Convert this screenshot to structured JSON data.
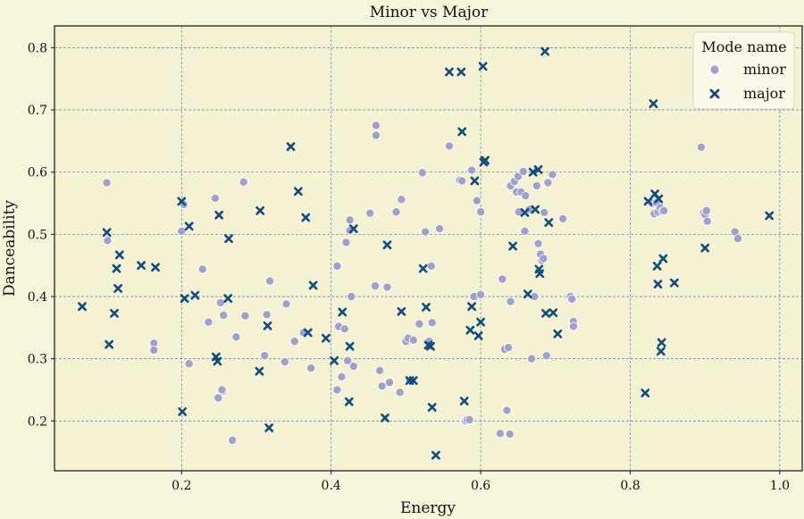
{
  "chart_data": {
    "type": "scatter",
    "title": "Minor vs Major",
    "xlabel": "Energy",
    "ylabel": "Danceability",
    "xlim": [
      0.03,
      1.03
    ],
    "ylim": [
      0.12,
      0.835
    ],
    "xticks": [
      0.2,
      0.4,
      0.6,
      0.8,
      1.0
    ],
    "xtick_labels": [
      "0.2",
      "0.4",
      "0.6",
      "0.8",
      "1.0"
    ],
    "yticks": [
      0.2,
      0.3,
      0.4,
      0.5,
      0.6,
      0.7,
      0.8
    ],
    "ytick_labels": [
      "0.2",
      "0.3",
      "0.4",
      "0.5",
      "0.6",
      "0.7",
      "0.8"
    ],
    "grid": true,
    "legend": {
      "title": "Mode name",
      "placement": "top-right"
    },
    "series": [
      {
        "name": "minor",
        "marker": "circle",
        "color": "#9fa0cb",
        "points": [
          [
            0.1,
            0.583
          ],
          [
            0.101,
            0.49
          ],
          [
            0.163,
            0.325
          ],
          [
            0.163,
            0.314
          ],
          [
            0.2,
            0.505
          ],
          [
            0.203,
            0.548
          ],
          [
            0.21,
            0.292
          ],
          [
            0.228,
            0.444
          ],
          [
            0.236,
            0.359
          ],
          [
            0.245,
            0.558
          ],
          [
            0.249,
            0.237
          ],
          [
            0.252,
            0.39
          ],
          [
            0.255,
            0.248
          ],
          [
            0.254,
            0.25
          ],
          [
            0.256,
            0.37
          ],
          [
            0.268,
            0.169
          ],
          [
            0.273,
            0.335
          ],
          [
            0.283,
            0.584
          ],
          [
            0.285,
            0.369
          ],
          [
            0.311,
            0.305
          ],
          [
            0.314,
            0.371
          ],
          [
            0.318,
            0.425
          ],
          [
            0.338,
            0.295
          ],
          [
            0.34,
            0.388
          ],
          [
            0.351,
            0.328
          ],
          [
            0.363,
            0.342
          ],
          [
            0.373,
            0.285
          ],
          [
            0.408,
            0.449
          ],
          [
            0.408,
            0.25
          ],
          [
            0.41,
            0.352
          ],
          [
            0.414,
            0.271
          ],
          [
            0.418,
            0.348
          ],
          [
            0.42,
            0.487
          ],
          [
            0.422,
            0.297
          ],
          [
            0.425,
            0.506
          ],
          [
            0.425,
            0.523
          ],
          [
            0.427,
            0.4
          ],
          [
            0.43,
            0.288
          ],
          [
            0.46,
            0.675
          ],
          [
            0.46,
            0.659
          ],
          [
            0.452,
            0.534
          ],
          [
            0.459,
            0.417
          ],
          [
            0.465,
            0.281
          ],
          [
            0.468,
            0.256
          ],
          [
            0.475,
            0.415
          ],
          [
            0.478,
            0.262
          ],
          [
            0.487,
            0.536
          ],
          [
            0.492,
            0.246
          ],
          [
            0.494,
            0.556
          ],
          [
            0.5,
            0.328
          ],
          [
            0.503,
            0.333
          ],
          [
            0.505,
            0.265
          ],
          [
            0.51,
            0.33
          ],
          [
            0.518,
            0.356
          ],
          [
            0.522,
            0.599
          ],
          [
            0.526,
            0.504
          ],
          [
            0.531,
            0.328
          ],
          [
            0.534,
            0.449
          ],
          [
            0.535,
            0.358
          ],
          [
            0.545,
            0.509
          ],
          [
            0.558,
            0.642
          ],
          [
            0.572,
            0.587
          ],
          [
            0.575,
            0.586
          ],
          [
            0.58,
            0.2
          ],
          [
            0.582,
            0.202
          ],
          [
            0.585,
            0.202
          ],
          [
            0.588,
            0.603
          ],
          [
            0.591,
            0.4
          ],
          [
            0.595,
            0.554
          ],
          [
            0.6,
            0.536
          ],
          [
            0.6,
            0.403
          ],
          [
            0.626,
            0.18
          ],
          [
            0.629,
            0.428
          ],
          [
            0.632,
            0.315
          ],
          [
            0.635,
            0.217
          ],
          [
            0.637,
            0.318
          ],
          [
            0.639,
            0.179
          ],
          [
            0.64,
            0.578
          ],
          [
            0.64,
            0.392
          ],
          [
            0.645,
            0.585
          ],
          [
            0.648,
            0.568
          ],
          [
            0.65,
            0.593
          ],
          [
            0.651,
            0.536
          ],
          [
            0.654,
            0.568
          ],
          [
            0.657,
            0.601
          ],
          [
            0.659,
            0.505
          ],
          [
            0.66,
            0.562
          ],
          [
            0.665,
            0.54
          ],
          [
            0.668,
            0.3
          ],
          [
            0.672,
            0.4
          ],
          [
            0.675,
            0.578
          ],
          [
            0.677,
            0.485
          ],
          [
            0.68,
            0.468
          ],
          [
            0.682,
            0.458
          ],
          [
            0.684,
            0.461
          ],
          [
            0.685,
            0.535
          ],
          [
            0.688,
            0.305
          ],
          [
            0.69,
            0.583
          ],
          [
            0.696,
            0.596
          ],
          [
            0.71,
            0.525
          ],
          [
            0.72,
            0.4
          ],
          [
            0.722,
            0.396
          ],
          [
            0.724,
            0.36
          ],
          [
            0.724,
            0.352
          ],
          [
            0.829,
            0.55
          ],
          [
            0.832,
            0.533
          ],
          [
            0.835,
            0.551
          ],
          [
            0.837,
            0.536
          ],
          [
            0.84,
            0.543
          ],
          [
            0.843,
            0.537
          ],
          [
            0.845,
            0.538
          ],
          [
            0.895,
            0.64
          ],
          [
            0.898,
            0.534
          ],
          [
            0.9,
            0.532
          ],
          [
            0.902,
            0.538
          ],
          [
            0.903,
            0.521
          ],
          [
            0.94,
            0.504
          ],
          [
            0.944,
            0.493
          ]
        ]
      },
      {
        "name": "major",
        "marker": "x",
        "color": "#0f4c81",
        "points": [
          [
            0.067,
            0.384
          ],
          [
            0.1,
            0.503
          ],
          [
            0.103,
            0.323
          ],
          [
            0.11,
            0.373
          ],
          [
            0.113,
            0.445
          ],
          [
            0.115,
            0.413
          ],
          [
            0.117,
            0.467
          ],
          [
            0.146,
            0.45
          ],
          [
            0.165,
            0.447
          ],
          [
            0.2,
            0.553
          ],
          [
            0.201,
            0.215
          ],
          [
            0.204,
            0.397
          ],
          [
            0.21,
            0.513
          ],
          [
            0.218,
            0.402
          ],
          [
            0.246,
            0.303
          ],
          [
            0.248,
            0.296
          ],
          [
            0.25,
            0.531
          ],
          [
            0.263,
            0.493
          ],
          [
            0.262,
            0.397
          ],
          [
            0.305,
            0.538
          ],
          [
            0.304,
            0.28
          ],
          [
            0.315,
            0.353
          ],
          [
            0.317,
            0.189
          ],
          [
            0.346,
            0.641
          ],
          [
            0.356,
            0.569
          ],
          [
            0.366,
            0.527
          ],
          [
            0.369,
            0.342
          ],
          [
            0.376,
            0.418
          ],
          [
            0.393,
            0.333
          ],
          [
            0.404,
            0.297
          ],
          [
            0.415,
            0.375
          ],
          [
            0.424,
            0.231
          ],
          [
            0.425,
            0.32
          ],
          [
            0.43,
            0.509
          ],
          [
            0.472,
            0.205
          ],
          [
            0.475,
            0.483
          ],
          [
            0.494,
            0.376
          ],
          [
            0.505,
            0.265
          ],
          [
            0.51,
            0.265
          ],
          [
            0.523,
            0.445
          ],
          [
            0.527,
            0.383
          ],
          [
            0.53,
            0.322
          ],
          [
            0.533,
            0.32
          ],
          [
            0.535,
            0.222
          ],
          [
            0.54,
            0.145
          ],
          [
            0.558,
            0.761
          ],
          [
            0.574,
            0.761
          ],
          [
            0.575,
            0.665
          ],
          [
            0.578,
            0.232
          ],
          [
            0.586,
            0.346
          ],
          [
            0.588,
            0.384
          ],
          [
            0.592,
            0.586
          ],
          [
            0.597,
            0.337
          ],
          [
            0.6,
            0.359
          ],
          [
            0.603,
            0.77
          ],
          [
            0.604,
            0.616
          ],
          [
            0.606,
            0.619
          ],
          [
            0.643,
            0.481
          ],
          [
            0.659,
            0.535
          ],
          [
            0.663,
            0.404
          ],
          [
            0.67,
            0.6
          ],
          [
            0.673,
            0.54
          ],
          [
            0.677,
            0.604
          ],
          [
            0.678,
            0.444
          ],
          [
            0.679,
            0.437
          ],
          [
            0.686,
            0.794
          ],
          [
            0.687,
            0.373
          ],
          [
            0.691,
            0.519
          ],
          [
            0.697,
            0.374
          ],
          [
            0.703,
            0.34
          ],
          [
            0.82,
            0.245
          ],
          [
            0.824,
            0.553
          ],
          [
            0.831,
            0.71
          ],
          [
            0.833,
            0.565
          ],
          [
            0.836,
            0.449
          ],
          [
            0.837,
            0.42
          ],
          [
            0.838,
            0.557
          ],
          [
            0.841,
            0.312
          ],
          [
            0.842,
            0.326
          ],
          [
            0.844,
            0.461
          ],
          [
            0.859,
            0.422
          ],
          [
            0.9,
            0.478
          ],
          [
            0.986,
            0.53
          ]
        ]
      }
    ]
  }
}
